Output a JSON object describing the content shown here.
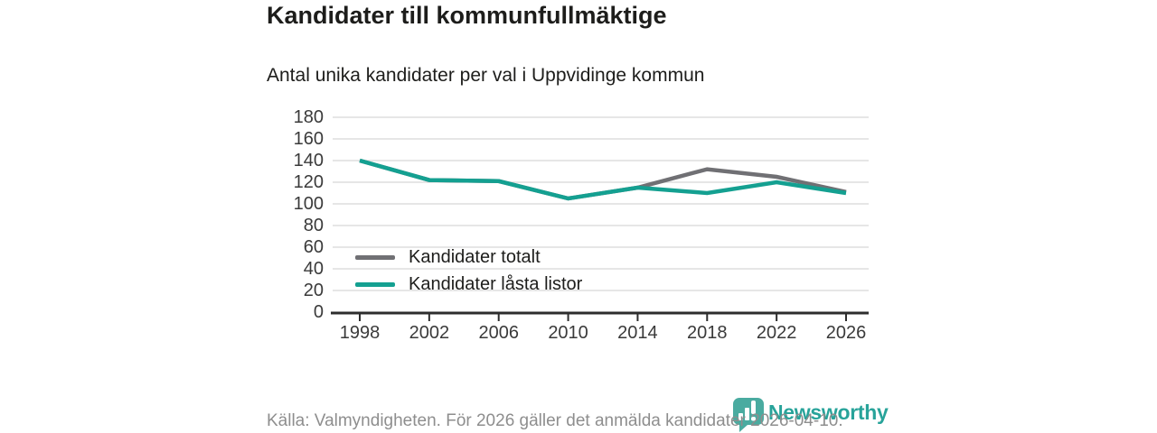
{
  "header": {
    "title": "Kandidater till kommunfullmäktige",
    "subtitle": "Antal unika kandidater per val i Uppvidinge kommun"
  },
  "chart_data": {
    "type": "line",
    "title": "Kandidater till kommunfullmäktige",
    "subtitle": "Antal unika kandidater per val i Uppvidinge kommun",
    "categories": [
      "1998",
      "2002",
      "2006",
      "2010",
      "2014",
      "2018",
      "2022",
      "2026"
    ],
    "series": [
      {
        "name": "Kandidater totalt",
        "color": "#707074",
        "values": [
          140,
          122,
          121,
          105,
          115,
          132,
          125,
          111
        ]
      },
      {
        "name": "Kandidater låsta listor",
        "color": "#14a091",
        "values": [
          140,
          122,
          121,
          105,
          115,
          110,
          120,
          110
        ]
      }
    ],
    "xlabel": "",
    "ylabel": "",
    "ylim": [
      0,
      180
    ],
    "yticks": [
      0,
      20,
      40,
      60,
      80,
      100,
      120,
      140,
      160,
      180
    ],
    "grid": "horizontal",
    "legend_position": "inside-lower-left",
    "colors": {
      "gridline": "#dddddd",
      "axis": "#2d2d2d",
      "tick_text": "#3a3a3a"
    }
  },
  "footer": {
    "source": "Källa: Valmyndigheten. För 2026 gäller det anmälda kandidater 2026-04-10.",
    "brand": "Newsworthy",
    "brand_color": "#28a39a",
    "logo_bubble_color": "#4aaba0"
  }
}
